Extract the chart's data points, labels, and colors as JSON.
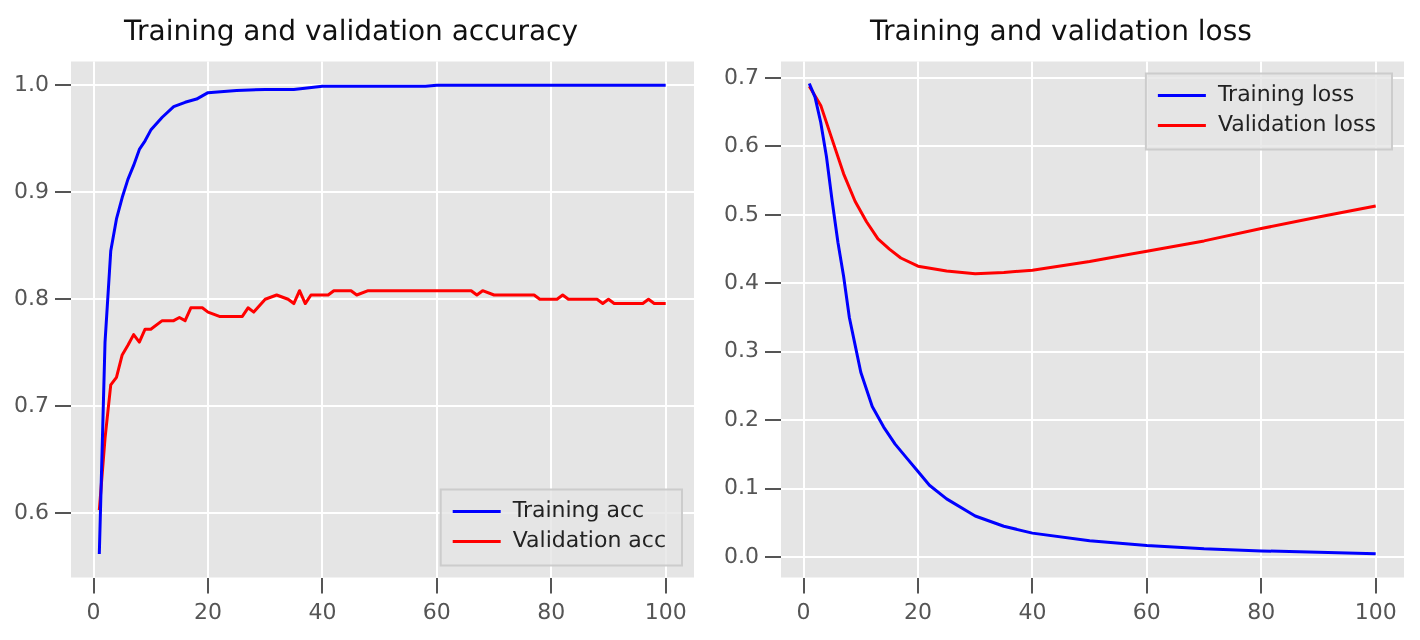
{
  "chart_data": [
    {
      "type": "line",
      "title": "Training and validation accuracy",
      "xlim": [
        -3.95,
        104.95
      ],
      "xticks": [
        0,
        20,
        40,
        60,
        80,
        100
      ],
      "ylim": [
        0.54,
        1.022
      ],
      "yticks": [
        0.6,
        0.7,
        0.8,
        0.9,
        {
          "value": 1,
          "label": "1.0"
        }
      ],
      "grid": true,
      "legend": "bottom right",
      "series": [
        {
          "name": "Training acc",
          "color": "#0000ff",
          "x": [
            1,
            2,
            3,
            4,
            5,
            6,
            7,
            8,
            9,
            10,
            12,
            14,
            16,
            18,
            20,
            25,
            30,
            35,
            40,
            50,
            58,
            60,
            100
          ],
          "values": [
            0.562,
            0.76,
            0.845,
            0.875,
            0.895,
            0.912,
            0.925,
            0.94,
            0.948,
            0.958,
            0.97,
            0.98,
            0.984,
            0.987,
            0.993,
            0.995,
            0.996,
            0.996,
            0.999,
            0.999,
            0.999,
            1.0,
            1.0
          ]
        },
        {
          "name": "Validation acc",
          "color": "#ff0000",
          "x": [
            1,
            2,
            3,
            4,
            5,
            6,
            7,
            8,
            9,
            10,
            12,
            14,
            15,
            16,
            17,
            19,
            20,
            22,
            26,
            27,
            28,
            30,
            32,
            34,
            35,
            36,
            37,
            38,
            41,
            42,
            45,
            46,
            48,
            66,
            67,
            68,
            70,
            77,
            78,
            81,
            82,
            83,
            88,
            89,
            90,
            91,
            96,
            97,
            98,
            100
          ],
          "values": [
            0.603,
            0.67,
            0.72,
            0.727,
            0.748,
            0.757,
            0.767,
            0.76,
            0.772,
            0.772,
            0.78,
            0.78,
            0.783,
            0.78,
            0.792,
            0.792,
            0.788,
            0.784,
            0.784,
            0.792,
            0.788,
            0.8,
            0.804,
            0.8,
            0.796,
            0.808,
            0.796,
            0.804,
            0.804,
            0.808,
            0.808,
            0.804,
            0.808,
            0.808,
            0.804,
            0.808,
            0.804,
            0.804,
            0.8,
            0.8,
            0.804,
            0.8,
            0.8,
            0.796,
            0.8,
            0.796,
            0.796,
            0.8,
            0.796,
            0.796
          ]
        }
      ]
    },
    {
      "type": "line",
      "title": "Training and validation loss",
      "xlim": [
        -3.95,
        104.95
      ],
      "xticks": [
        0,
        20,
        40,
        60,
        80,
        100
      ],
      "ylim": [
        -0.03,
        0.724
      ],
      "yticks": [
        {
          "value": 0,
          "label": "0.0"
        },
        0.1,
        0.2,
        0.3,
        0.4,
        0.5,
        0.6,
        0.7
      ],
      "grid": true,
      "legend": "top right",
      "series": [
        {
          "name": "Training loss",
          "color": "#0000ff",
          "x": [
            1,
            2,
            3,
            4,
            5,
            6,
            7,
            8,
            9,
            10,
            12,
            14,
            16,
            18,
            20,
            22,
            25,
            30,
            35,
            40,
            50,
            60,
            70,
            80,
            90,
            100
          ],
          "values": [
            0.692,
            0.672,
            0.635,
            0.585,
            0.52,
            0.46,
            0.41,
            0.35,
            0.31,
            0.27,
            0.22,
            0.19,
            0.165,
            0.145,
            0.125,
            0.105,
            0.085,
            0.06,
            0.045,
            0.035,
            0.024,
            0.017,
            0.012,
            0.009,
            0.007,
            0.005
          ]
        },
        {
          "name": "Validation loss",
          "color": "#ff0000",
          "x": [
            1,
            3,
            5,
            7,
            9,
            11,
            13,
            15,
            17,
            20,
            25,
            30,
            35,
            40,
            50,
            60,
            70,
            80,
            90,
            100
          ],
          "values": [
            0.688,
            0.66,
            0.61,
            0.56,
            0.52,
            0.49,
            0.465,
            0.45,
            0.437,
            0.425,
            0.418,
            0.414,
            0.416,
            0.419,
            0.432,
            0.447,
            0.462,
            0.48,
            0.497,
            0.513
          ]
        }
      ]
    }
  ]
}
